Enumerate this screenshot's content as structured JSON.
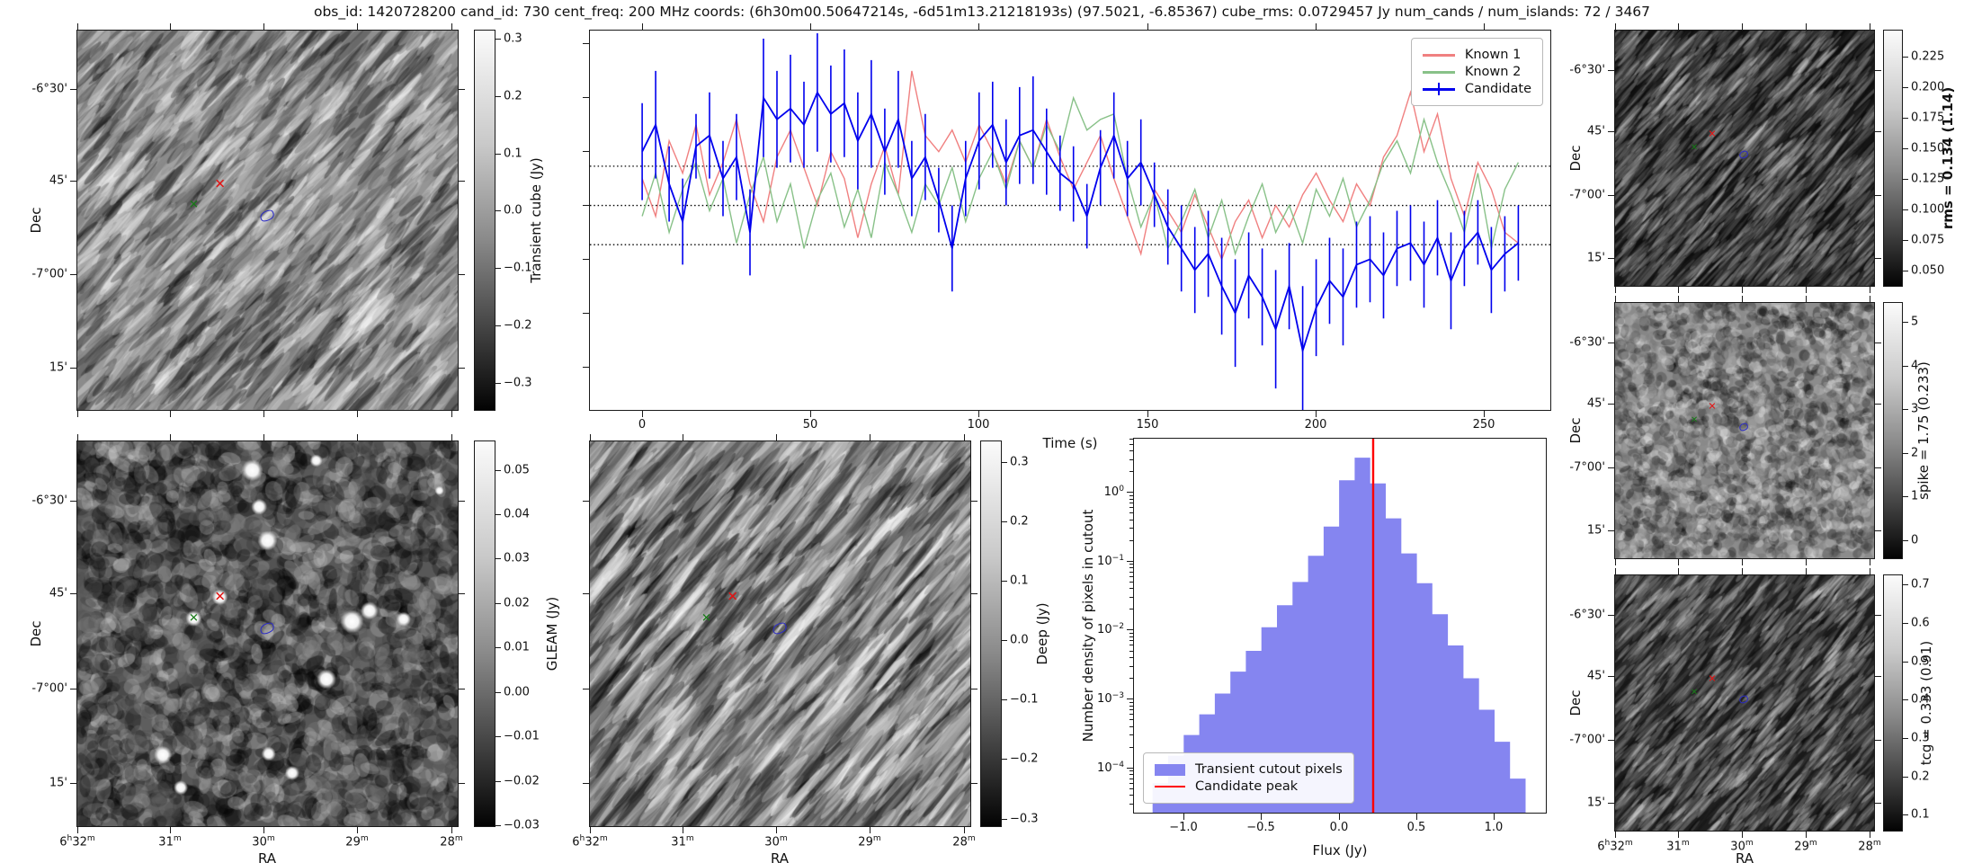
{
  "title": "obs_id: 1420728200 cand_id: 730 cent_freq: 200 MHz coords: (6h30m00.50647214s, -6d51m13.21218193s) (97.5021, -6.85367) cube_rms: 0.0729457 Jy num_cands / num_islands: 72 / 3467",
  "axes": {
    "dec_label": "Dec",
    "ra_label": "RA",
    "dec_ticks": [
      "-6°30'",
      "45'",
      "-7°00'",
      "15'"
    ],
    "ra_ticks": [
      "6h32m",
      "31m",
      "30m",
      "29m",
      "28m"
    ]
  },
  "markers": {
    "red_cross_color": "#e41313",
    "green_cross_color": "#167a16",
    "blue_contour_color": "#2a2ac8"
  },
  "colorbars": {
    "transient": {
      "label": "Transient cube (Jy)",
      "bold": false,
      "ticks": [
        "0.3",
        "0.2",
        "0.1",
        "0.0",
        "-0.1",
        "-0.2",
        "-0.3"
      ],
      "vmax": 0.315,
      "vmin": -0.35
    },
    "gleam": {
      "label": "GLEAM (Jy)",
      "bold": false,
      "ticks": [
        "0.05",
        "0.04",
        "0.03",
        "0.02",
        "0.01",
        "0.00",
        "-0.01",
        "-0.02",
        "-0.03"
      ],
      "vmax": 0.0565,
      "vmin": -0.0305
    },
    "deep": {
      "label": "Deep (Jy)",
      "bold": false,
      "ticks": [
        "0.3",
        "0.2",
        "0.1",
        "0.0",
        "-0.1",
        "-0.2",
        "-0.3"
      ],
      "vmax": 0.335,
      "vmin": -0.315
    },
    "rms": {
      "label": "rms = 0.134 (1.14)",
      "bold": true,
      "ticks": [
        "0.225",
        "0.200",
        "0.175",
        "0.150",
        "0.125",
        "0.100",
        "0.075",
        "0.050"
      ],
      "vmax": 0.247,
      "vmin": 0.036
    },
    "spike": {
      "label": "spike = 1.75 (0.233)",
      "bold": false,
      "ticks": [
        "5",
        "4",
        "3",
        "2",
        "1",
        "0"
      ],
      "vmax": 5.45,
      "vmin": -0.45
    },
    "tcg": {
      "label": "tcg = 0.333 (0.91)",
      "bold": false,
      "ticks": [
        "0.7",
        "0.6",
        "0.5",
        "0.4",
        "0.3",
        "0.2",
        "0.1"
      ],
      "vmax": 0.725,
      "vmin": 0.055
    }
  },
  "chart_data": [
    {
      "type": "line",
      "title": "",
      "xlabel": "Time (s)",
      "ylabel": "",
      "x_start": 0,
      "x_step": 4,
      "n_points": 66,
      "xticks": [
        0,
        50,
        100,
        150,
        200,
        250
      ],
      "xlim": [
        -15.5,
        269.5
      ],
      "ylim": [
        -0.38,
        0.325
      ],
      "ytick_marks": [
        0.3,
        0.2,
        0.1,
        0.0,
        -0.1,
        -0.2,
        -0.3
      ],
      "dotted_hlines": [
        0.0729,
        0.0,
        -0.0729
      ],
      "legend_position": "upper right",
      "series": [
        {
          "name": "Known 1",
          "color": "#f08080",
          "values": [
            0.05,
            -0.02,
            0.12,
            0.06,
            0.15,
            0.02,
            0.08,
            0.16,
            0.04,
            -0.03,
            0.09,
            0.14,
            0.07,
            0.0,
            0.1,
            0.05,
            -0.06,
            0.04,
            0.11,
            0.02,
            0.25,
            0.13,
            0.1,
            0.14,
            0.08,
            0.15,
            0.1,
            0.04,
            0.12,
            0.07,
            0.16,
            0.09,
            0.03,
            0.08,
            0.13,
            0.05,
            -0.02,
            -0.09,
            0.03,
            -0.01,
            -0.05,
            0.02,
            -0.04,
            -0.1,
            -0.03,
            0.01,
            -0.06,
            0.0,
            -0.04,
            0.02,
            0.06,
            0.01,
            -0.03,
            0.04,
            0.0,
            0.09,
            0.13,
            0.21,
            0.1,
            0.17,
            0.05,
            -0.02,
            0.08,
            0.03,
            -0.05,
            -0.07
          ]
        },
        {
          "name": "Known 2",
          "color": "#88c188",
          "values": [
            -0.02,
            0.06,
            -0.05,
            0.03,
            0.08,
            -0.01,
            0.05,
            -0.07,
            0.02,
            0.09,
            -0.03,
            0.04,
            -0.08,
            0.01,
            0.06,
            -0.04,
            0.03,
            -0.06,
            0.08,
            0.02,
            -0.05,
            0.04,
            0.0,
            0.07,
            -0.03,
            0.05,
            0.1,
            0.03,
            0.12,
            0.07,
            0.15,
            0.1,
            0.2,
            0.14,
            0.16,
            0.17,
            0.05,
            -0.04,
            0.02,
            -0.08,
            -0.03,
            0.03,
            -0.06,
            0.01,
            -0.09,
            -0.02,
            0.04,
            -0.05,
            0.0,
            -0.07,
            0.03,
            -0.02,
            0.05,
            -0.04,
            0.01,
            0.08,
            0.12,
            0.06,
            0.16,
            0.08,
            0.02,
            -0.05,
            0.06,
            -0.08,
            0.03,
            0.08
          ]
        },
        {
          "name": "Candidate",
          "color": "#0000ee",
          "values": [
            0.1,
            0.15,
            0.04,
            -0.03,
            0.11,
            0.13,
            0.05,
            0.09,
            -0.05,
            0.2,
            0.16,
            0.18,
            0.15,
            0.21,
            0.17,
            0.19,
            0.12,
            0.17,
            0.1,
            0.16,
            0.05,
            0.09,
            0.01,
            -0.08,
            0.05,
            0.12,
            0.15,
            0.08,
            0.13,
            0.14,
            0.1,
            0.06,
            0.04,
            -0.02,
            0.07,
            0.13,
            0.05,
            0.08,
            0.02,
            -0.04,
            -0.08,
            -0.12,
            -0.09,
            -0.15,
            -0.2,
            -0.13,
            -0.17,
            -0.23,
            -0.15,
            -0.27,
            -0.19,
            -0.14,
            -0.17,
            -0.11,
            -0.1,
            -0.13,
            -0.08,
            -0.07,
            -0.11,
            -0.06,
            -0.14,
            -0.08,
            -0.05,
            -0.12,
            -0.09,
            -0.07
          ],
          "errors": [
            0.09,
            0.1,
            0.07,
            0.08,
            0.06,
            0.08,
            0.07,
            0.08,
            0.08,
            0.11,
            0.09,
            0.1,
            0.08,
            0.11,
            0.09,
            0.1,
            0.09,
            0.1,
            0.08,
            0.09,
            0.07,
            0.08,
            0.06,
            0.08,
            0.07,
            0.09,
            0.08,
            0.08,
            0.09,
            0.1,
            0.08,
            0.07,
            0.07,
            0.06,
            0.07,
            0.08,
            0.07,
            0.08,
            0.06,
            0.07,
            0.08,
            0.08,
            0.08,
            0.09,
            0.1,
            0.08,
            0.09,
            0.11,
            0.08,
            0.12,
            0.09,
            0.08,
            0.09,
            0.08,
            0.08,
            0.08,
            0.07,
            0.07,
            0.08,
            0.07,
            0.09,
            0.07,
            0.06,
            0.08,
            0.07,
            0.07
          ]
        }
      ]
    },
    {
      "type": "bar",
      "subtype": "histogram",
      "xlabel": "Flux (Jy)",
      "ylabel": "Number density of pixels in cutout",
      "yscale": "log",
      "xticks": [
        -1.0,
        -0.5,
        0.0,
        0.5,
        1.0
      ],
      "ytick_exponents": [
        0,
        -1,
        -2,
        -3,
        -4
      ],
      "xlim": [
        -1.32,
        1.33
      ],
      "ylim_exponents": [
        -4.65,
        0.78
      ],
      "bin_start": -1.2,
      "bin_width": 0.1,
      "values": [
        6e-05,
        0.00015,
        0.0003,
        0.0006,
        0.0012,
        0.0025,
        0.005,
        0.011,
        0.023,
        0.05,
        0.12,
        0.32,
        1.5,
        3.2,
        1.35,
        0.42,
        0.13,
        0.048,
        0.017,
        0.006,
        0.002,
        0.0007,
        0.00024,
        7e-05
      ],
      "bar_color": "#8585f0",
      "peak_line": {
        "x": 0.219,
        "color": "#ff0000"
      },
      "legend": [
        "Transient cutout pixels",
        "Candidate peak"
      ]
    }
  ]
}
